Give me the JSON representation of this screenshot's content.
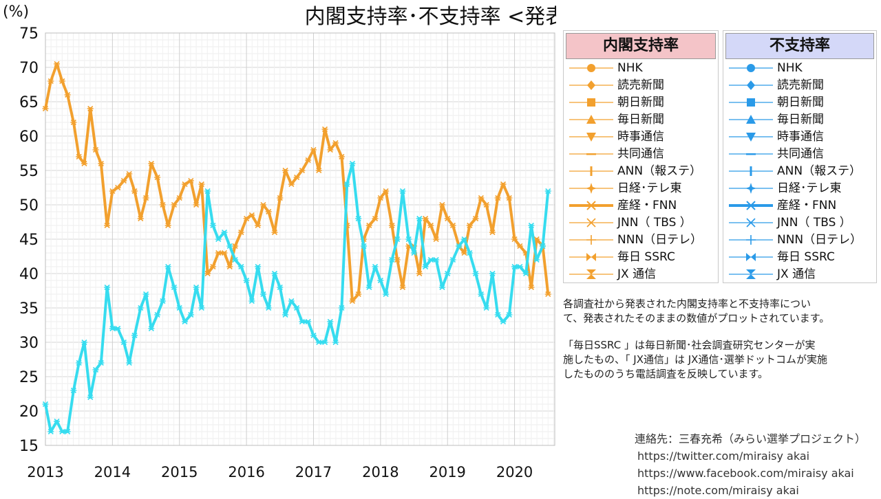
{
  "chart_data": {
    "type": "line",
    "title": "内閣支持率･不支持率 <発表値>",
    "y_unit_label": "(%)",
    "ylim": [
      15,
      75
    ],
    "y_ticks": [
      15,
      20,
      25,
      30,
      35,
      40,
      45,
      50,
      55,
      60,
      65,
      70,
      75
    ],
    "xlim": [
      2013,
      2020.6
    ],
    "x_ticks": [
      2013,
      2014,
      2015,
      2016,
      2017,
      2018,
      2019,
      2020
    ],
    "grid": true,
    "legend_placement": "right",
    "series_groups": [
      {
        "name": "内閣支持率",
        "color": "#f0a030",
        "header_bg": "#f4c4c8"
      },
      {
        "name": "不支持率",
        "color": "#30d8f0",
        "header_bg": "#d4d8f8"
      }
    ],
    "pollsters": [
      "NHK",
      "読売新聞",
      "朝日新聞",
      "毎日新聞",
      "時事通信",
      "共同通信",
      "ANN（報ステ）",
      "日経･テレ東",
      "産経・FNN",
      "JNN（ TBS ）",
      "NNN（日テレ）",
      "毎日 SSRC",
      "JX 通信"
    ],
    "approval_sankei_fnn": {
      "x": [
        2013.0,
        2013.08,
        2013.17,
        2013.25,
        2013.33,
        2013.42,
        2013.5,
        2013.58,
        2013.67,
        2013.75,
        2013.83,
        2013.92,
        2014.0,
        2014.08,
        2014.17,
        2014.25,
        2014.33,
        2014.42,
        2014.5,
        2014.58,
        2014.67,
        2014.75,
        2014.83,
        2014.92,
        2015.0,
        2015.08,
        2015.17,
        2015.25,
        2015.33,
        2015.42,
        2015.5,
        2015.58,
        2015.67,
        2015.75,
        2015.83,
        2015.92,
        2016.0,
        2016.08,
        2016.17,
        2016.25,
        2016.33,
        2016.42,
        2016.5,
        2016.58,
        2016.67,
        2016.75,
        2016.83,
        2016.92,
        2017.0,
        2017.08,
        2017.17,
        2017.25,
        2017.33,
        2017.42,
        2017.5,
        2017.58,
        2017.67,
        2017.75,
        2017.83,
        2017.92,
        2018.0,
        2018.08,
        2018.17,
        2018.25,
        2018.33,
        2018.42,
        2018.5,
        2018.58,
        2018.67,
        2018.75,
        2018.83,
        2018.92,
        2019.0,
        2019.08,
        2019.17,
        2019.25,
        2019.33,
        2019.42,
        2019.5,
        2019.58,
        2019.67,
        2019.75,
        2019.83,
        2019.92,
        2020.0,
        2020.08,
        2020.17,
        2020.25,
        2020.33,
        2020.42,
        2020.5
      ],
      "values": [
        64,
        68,
        70.5,
        68,
        66,
        62,
        57,
        56,
        64,
        58,
        56,
        47,
        52,
        52.5,
        53.5,
        54.5,
        52,
        48,
        51,
        56,
        54,
        50,
        47,
        50,
        51,
        53,
        53.5,
        50,
        53,
        40,
        41,
        43,
        43,
        41,
        44,
        46,
        48,
        48.5,
        47,
        50,
        49,
        46,
        51,
        55,
        53,
        54,
        55,
        56.5,
        58,
        55,
        61,
        58,
        59,
        57,
        47,
        36,
        37,
        45,
        47,
        48,
        51,
        52,
        47,
        42,
        38,
        44,
        44,
        40,
        48,
        47,
        45,
        50,
        48,
        47,
        44,
        43,
        47,
        48,
        51,
        50,
        46,
        51,
        53,
        51,
        45,
        44,
        43,
        38,
        45,
        44,
        37
      ]
    },
    "disapproval_sankei_fnn": {
      "x": [
        2013.0,
        2013.08,
        2013.17,
        2013.25,
        2013.33,
        2013.42,
        2013.5,
        2013.58,
        2013.67,
        2013.75,
        2013.83,
        2013.92,
        2014.0,
        2014.08,
        2014.17,
        2014.25,
        2014.33,
        2014.42,
        2014.5,
        2014.58,
        2014.67,
        2014.75,
        2014.83,
        2014.92,
        2015.0,
        2015.08,
        2015.17,
        2015.25,
        2015.33,
        2015.42,
        2015.5,
        2015.58,
        2015.67,
        2015.75,
        2015.83,
        2015.92,
        2016.0,
        2016.08,
        2016.17,
        2016.25,
        2016.33,
        2016.42,
        2016.5,
        2016.58,
        2016.67,
        2016.75,
        2016.83,
        2016.92,
        2017.0,
        2017.08,
        2017.17,
        2017.25,
        2017.33,
        2017.42,
        2017.5,
        2017.58,
        2017.67,
        2017.75,
        2017.83,
        2017.92,
        2018.0,
        2018.08,
        2018.17,
        2018.25,
        2018.33,
        2018.42,
        2018.5,
        2018.58,
        2018.67,
        2018.75,
        2018.83,
        2018.92,
        2019.0,
        2019.08,
        2019.17,
        2019.25,
        2019.33,
        2019.42,
        2019.5,
        2019.58,
        2019.67,
        2019.75,
        2019.83,
        2019.92,
        2020.0,
        2020.08,
        2020.17,
        2020.25,
        2020.33,
        2020.42,
        2020.5
      ],
      "values": [
        21,
        17,
        18.5,
        17,
        17,
        23,
        27,
        30,
        22,
        26,
        27,
        38,
        32,
        32,
        30,
        27,
        31,
        35,
        37,
        32,
        34,
        36,
        41,
        38,
        35,
        33,
        34,
        38,
        35,
        52,
        47,
        45,
        46,
        44,
        42,
        41,
        39,
        36,
        41,
        37,
        35,
        40,
        38,
        34,
        36,
        35,
        33,
        33,
        31,
        30,
        30,
        33,
        30,
        35,
        53,
        56,
        48,
        44,
        38,
        41,
        39,
        37,
        42,
        45,
        52,
        45,
        43,
        48,
        41,
        42,
        42,
        38,
        40,
        42,
        44,
        45,
        43,
        40,
        37,
        35,
        40,
        34,
        33,
        34,
        41,
        41,
        40,
        47,
        42,
        44,
        52
      ]
    }
  },
  "legend": {
    "approval_header": "内閣支持率",
    "disapproval_header": "不支持率"
  },
  "notes": {
    "line1": "各調査社から発表された内閣支持率と不支持率につい",
    "line2": "て、発表されたそのままの数値がプロットされています。",
    "line3": "「毎日SSRC 」は毎日新聞･社会調査研究センターが実",
    "line4": "施したもの、「 JX通信」は JX通信･選挙ドットコムが実施",
    "line5": "したもののうち電話調査を反映しています。"
  },
  "contact": {
    "title": "連絡先：三春充希（みらい選挙プロジェクト）",
    "twitter": "https://twitter.com/miraisy akai",
    "facebook": "https://www.facebook.com/miraisy akai",
    "note": "https://note.com/miraisy akai"
  }
}
